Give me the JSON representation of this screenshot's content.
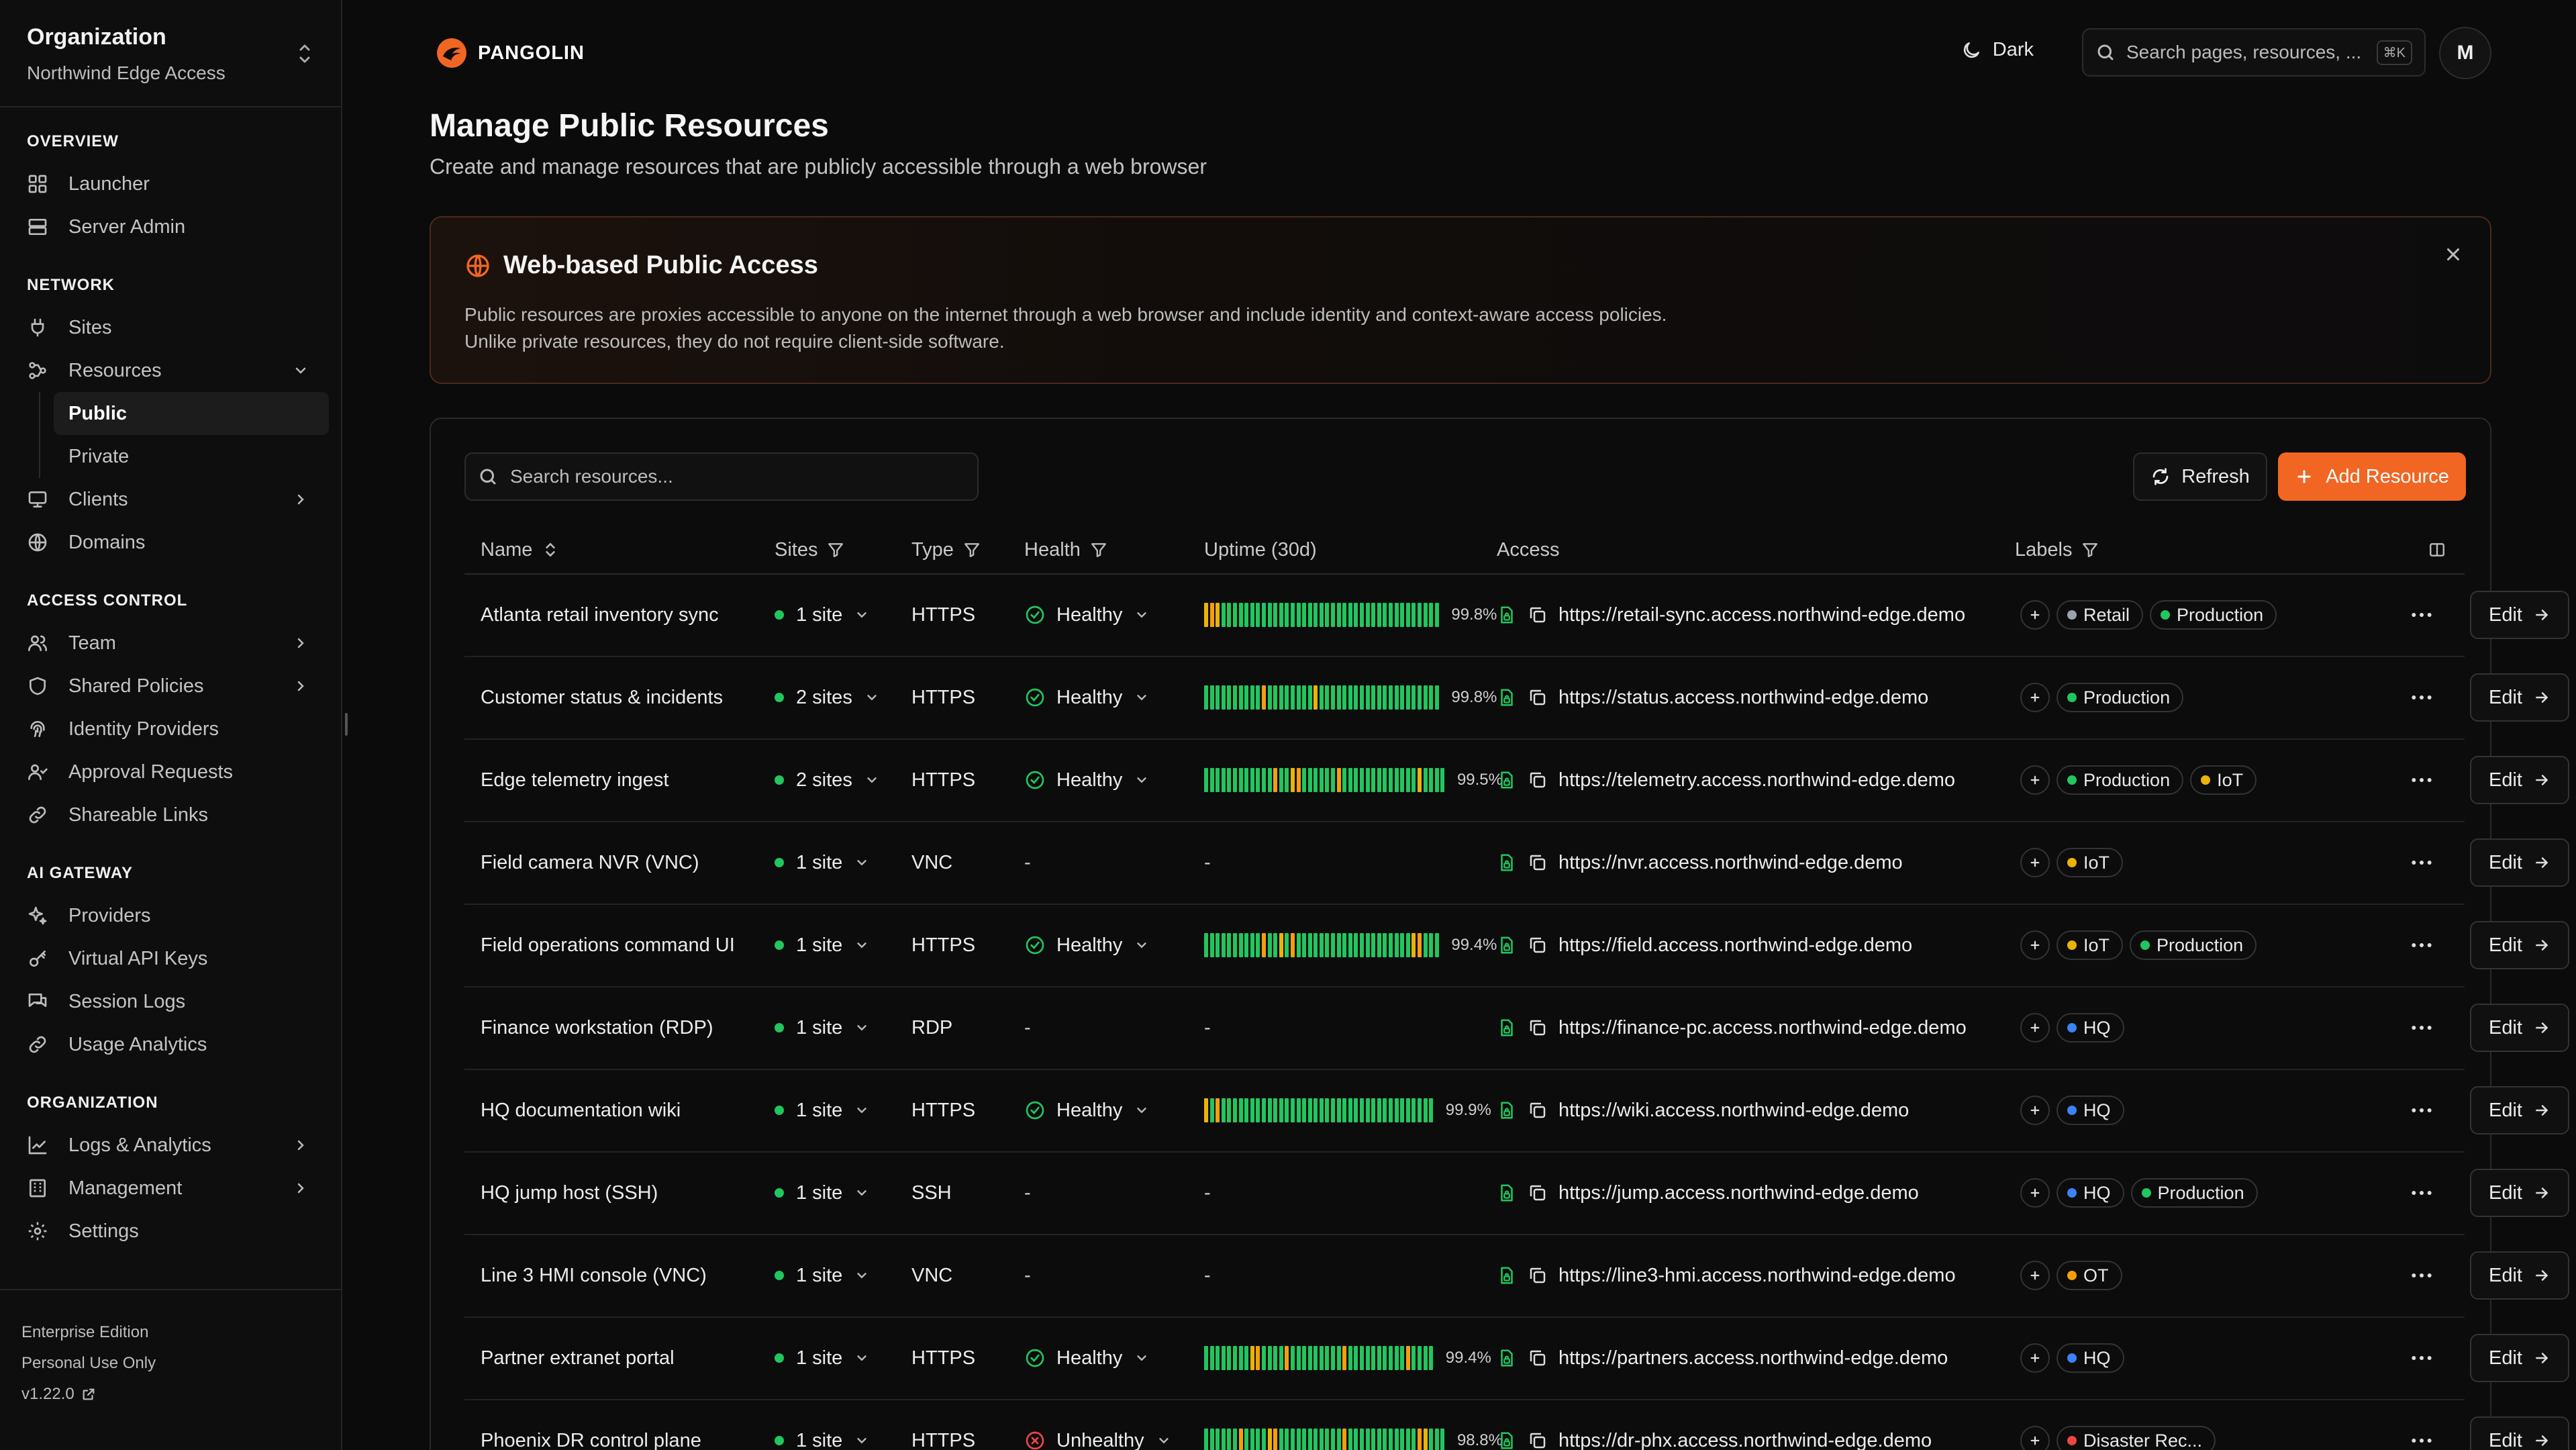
{
  "colors": {
    "accent": "#f16623",
    "green": "#22c55e",
    "yellow": "#eab308",
    "orange": "#f59e0b",
    "red": "#ef4444",
    "blue": "#3b82f6",
    "gray": "#9ca3af"
  },
  "org": {
    "label": "Organization",
    "name": "Northwind Edge Access"
  },
  "nav": {
    "overview_title": "OVERVIEW",
    "launcher": "Launcher",
    "server_admin": "Server Admin",
    "network_title": "NETWORK",
    "sites": "Sites",
    "resources": "Resources",
    "public": "Public",
    "private": "Private",
    "clients": "Clients",
    "domains": "Domains",
    "access_title": "ACCESS CONTROL",
    "team": "Team",
    "shared_policies": "Shared Policies",
    "identity_providers": "Identity Providers",
    "approval_requests": "Approval Requests",
    "shareable_links": "Shareable Links",
    "ai_title": "AI GATEWAY",
    "providers": "Providers",
    "virtual_keys": "Virtual API Keys",
    "session_logs": "Session Logs",
    "usage_analytics": "Usage Analytics",
    "organization_title": "ORGANIZATION",
    "logs_analytics": "Logs & Analytics",
    "management": "Management",
    "settings": "Settings"
  },
  "footer": {
    "edition": "Enterprise Edition",
    "license": "Personal Use Only",
    "version": "v1.22.0"
  },
  "topbar": {
    "brand": "PANGOLIN",
    "theme": "Dark",
    "search_placeholder": "Search pages, resources, ...",
    "shortcut": "⌘K",
    "avatar": "M"
  },
  "page": {
    "title": "Manage Public Resources",
    "subtitle": "Create and manage resources that are publicly accessible through a web browser"
  },
  "info": {
    "title": "Web-based Public Access",
    "body": "Public resources are proxies accessible to anyone on the internet through a web browser and include identity and context-aware access policies. Unlike private resources, they do not require client-side software."
  },
  "toolbar": {
    "search_placeholder": "Search resources...",
    "refresh": "Refresh",
    "add": "Add Resource"
  },
  "columns": {
    "name": "Name",
    "sites": "Sites",
    "type": "Type",
    "health": "Health",
    "uptime": "Uptime (30d)",
    "access": "Access",
    "labels": "Labels"
  },
  "rows": [
    {
      "name": "Atlanta retail inventory sync",
      "sites": "1 site",
      "type": "HTTPS",
      "health": "Healthy",
      "health_state": "healthy",
      "uptime": "99.8%",
      "bars": "yoygggggggggggggggggggggggggggggggggggggg",
      "url": "https://retail-sync.access.northwind-edge.demo",
      "labels": [
        {
          "text": "Retail",
          "color": "#9ca3af"
        },
        {
          "text": "Production",
          "color": "#22c55e"
        }
      ],
      "edit": "Edit"
    },
    {
      "name": "Customer status & incidents",
      "sites": "2 sites",
      "type": "HTTPS",
      "health": "Healthy",
      "health_state": "healthy",
      "uptime": "99.8%",
      "bars": "ggggggggggoggggggggyggggggggggggggggggggg",
      "url": "https://status.access.northwind-edge.demo",
      "labels": [
        {
          "text": "Production",
          "color": "#22c55e"
        }
      ],
      "edit": "Edit"
    },
    {
      "name": "Edge telemetry ingest",
      "sites": "2 sites",
      "type": "HTTPS",
      "health": "Healthy",
      "health_state": "healthy",
      "uptime": "99.5%",
      "bars": "ggggggggggggoggyoggggggogggggggggggggygggg",
      "url": "https://telemetry.access.northwind-edge.demo",
      "labels": [
        {
          "text": "Production",
          "color": "#22c55e"
        },
        {
          "text": "IoT",
          "color": "#eab308"
        }
      ],
      "edit": "Edit"
    },
    {
      "name": "Field camera NVR (VNC)",
      "sites": "1 site",
      "type": "VNC",
      "health": "-",
      "health_state": "none",
      "uptime": "-",
      "bars": "",
      "url": "https://nvr.access.northwind-edge.demo",
      "labels": [
        {
          "text": "IoT",
          "color": "#eab308"
        }
      ],
      "edit": "Edit"
    },
    {
      "name": "Field operations command UI",
      "sites": "1 site",
      "type": "HTTPS",
      "health": "Healthy",
      "health_state": "healthy",
      "uptime": "99.4%",
      "bars": "ggggggggggoggygoggggggggggggggggggggyoggg",
      "url": "https://field.access.northwind-edge.demo",
      "labels": [
        {
          "text": "IoT",
          "color": "#eab308"
        },
        {
          "text": "Production",
          "color": "#22c55e"
        }
      ],
      "edit": "Edit"
    },
    {
      "name": "Finance workstation (RDP)",
      "sites": "1 site",
      "type": "RDP",
      "health": "-",
      "health_state": "none",
      "uptime": "-",
      "bars": "",
      "url": "https://finance-pc.access.northwind-edge.demo",
      "labels": [
        {
          "text": "HQ",
          "color": "#3b82f6"
        }
      ],
      "edit": "Edit"
    },
    {
      "name": "HQ documentation wiki",
      "sites": "1 site",
      "type": "HTTPS",
      "health": "Healthy",
      "health_state": "healthy",
      "uptime": "99.9%",
      "bars": "ygoggggggggggggggggggggggggggggggggggggg",
      "url": "https://wiki.access.northwind-edge.demo",
      "labels": [
        {
          "text": "HQ",
          "color": "#3b82f6"
        }
      ],
      "edit": "Edit"
    },
    {
      "name": "HQ jump host (SSH)",
      "sites": "1 site",
      "type": "SSH",
      "health": "-",
      "health_state": "none",
      "uptime": "-",
      "bars": "",
      "url": "https://jump.access.northwind-edge.demo",
      "labels": [
        {
          "text": "HQ",
          "color": "#3b82f6"
        },
        {
          "text": "Production",
          "color": "#22c55e"
        }
      ],
      "edit": "Edit"
    },
    {
      "name": "Line 3 HMI console (VNC)",
      "sites": "1 site",
      "type": "VNC",
      "health": "-",
      "health_state": "none",
      "uptime": "-",
      "bars": "",
      "url": "https://line3-hmi.access.northwind-edge.demo",
      "labels": [
        {
          "text": "OT",
          "color": "#f59e0b"
        }
      ],
      "edit": "Edit"
    },
    {
      "name": "Partner extranet portal",
      "sites": "1 site",
      "type": "HTTPS",
      "health": "Healthy",
      "health_state": "healthy",
      "uptime": "99.4%",
      "bars": "ggggggggyoggggogggggggggoggggggggggogggg",
      "url": "https://partners.access.northwind-edge.demo",
      "labels": [
        {
          "text": "HQ",
          "color": "#3b82f6"
        }
      ],
      "edit": "Edit"
    },
    {
      "name": "Phoenix DR control plane",
      "sites": "1 site",
      "type": "HTTPS",
      "health": "Unhealthy",
      "health_state": "unhealthy",
      "uptime": "98.8%",
      "bars": "ggggggoggggyogggggggggggoggggggggggggoyggg",
      "url": "https://dr-phx.access.northwind-edge.demo",
      "labels": [
        {
          "text": "Disaster Rec...",
          "color": "#ef4444"
        }
      ],
      "edit": "Edit"
    }
  ]
}
